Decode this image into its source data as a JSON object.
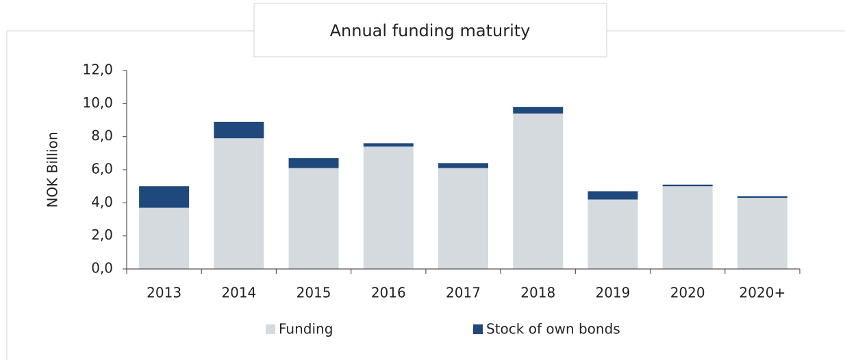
{
  "chart_data": {
    "type": "stacked_bar",
    "title": "Annual funding maturity",
    "y_label": "NOK Billion",
    "categories": [
      "2013",
      "2014",
      "2015",
      "2016",
      "2017",
      "2018",
      "2019",
      "2020",
      "2020+"
    ],
    "series": [
      {
        "name": "Funding",
        "color": "#d5dade",
        "values": [
          3.7,
          7.9,
          6.1,
          7.4,
          6.1,
          9.4,
          4.2,
          5.0,
          4.3
        ]
      },
      {
        "name": "Stock of own bonds",
        "color": "#1f497d",
        "values": [
          1.3,
          1.0,
          0.6,
          0.2,
          0.3,
          0.4,
          0.5,
          0.1,
          0.1
        ]
      }
    ],
    "ylim": [
      0,
      12
    ],
    "yticks": [
      {
        "value": 0,
        "label": "0,0"
      },
      {
        "value": 2,
        "label": "2,0"
      },
      {
        "value": 4,
        "label": "4,0"
      },
      {
        "value": 6,
        "label": "6,0"
      },
      {
        "value": 8,
        "label": "8,0"
      },
      {
        "value": 10,
        "label": "10,0"
      },
      {
        "value": 12,
        "label": "12,0"
      }
    ]
  }
}
